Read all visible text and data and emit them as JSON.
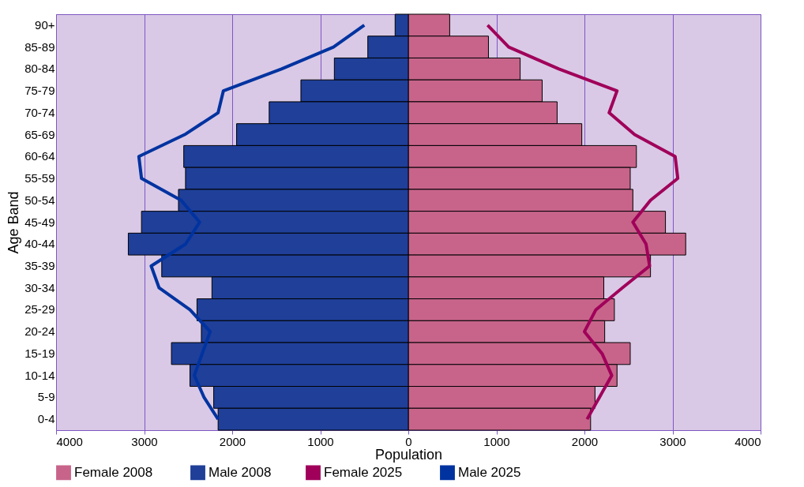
{
  "chart_data": {
    "type": "bar",
    "orientation": "horizontal",
    "xlabel": "Population",
    "ylabel": "Age Band",
    "categories": [
      "90+",
      "85-89",
      "80-84",
      "75-79",
      "70-74",
      "65-69",
      "60-64",
      "55-59",
      "50-54",
      "45-49",
      "40-44",
      "35-39",
      "30-34",
      "25-29",
      "20-24",
      "15-19",
      "10-14",
      "5-9",
      "0-4"
    ],
    "series": [
      {
        "name": "Female  2008",
        "color": "#c8648a",
        "values": [
          470,
          910,
          1270,
          1520,
          1690,
          1970,
          2590,
          2520,
          2550,
          2920,
          3150,
          2750,
          2220,
          2340,
          2230,
          2520,
          2370,
          2120,
          2070
        ]
      },
      {
        "name": "Male 2008",
        "color": "#1f3f99",
        "values": [
          -150,
          -460,
          -840,
          -1220,
          -1580,
          -1950,
          -2550,
          -2530,
          -2610,
          -3030,
          -3180,
          -2800,
          -2230,
          -2400,
          -2350,
          -2690,
          -2480,
          -2210,
          -2160
        ]
      },
      {
        "name": "Female  2025",
        "type": "line",
        "color": "#a0005a",
        "values": [
          900,
          1140,
          1710,
          2370,
          2280,
          2570,
          3030,
          3060,
          2750,
          2550,
          2700,
          2740,
          2430,
          2130,
          2000,
          2200,
          2310,
          2170,
          2030
        ]
      },
      {
        "name": "Male 2025",
        "type": "line",
        "color": "#0033a0",
        "values": [
          -500,
          -850,
          -1440,
          -2100,
          -2160,
          -2540,
          -3060,
          -3030,
          -2580,
          -2370,
          -2530,
          -2920,
          -2830,
          -2480,
          -2250,
          -2340,
          -2430,
          -2320,
          -2160
        ]
      }
    ],
    "xlim": [
      -4000,
      4000
    ],
    "xticks": [
      {
        "value": -4000,
        "label": "4000"
      },
      {
        "value": -3000,
        "label": "3000"
      },
      {
        "value": -2000,
        "label": "2000"
      },
      {
        "value": -1000,
        "label": "1000"
      },
      0,
      1000,
      2000,
      3000,
      4000
    ],
    "stacked": true,
    "grid": "x",
    "legend": "bottom"
  }
}
